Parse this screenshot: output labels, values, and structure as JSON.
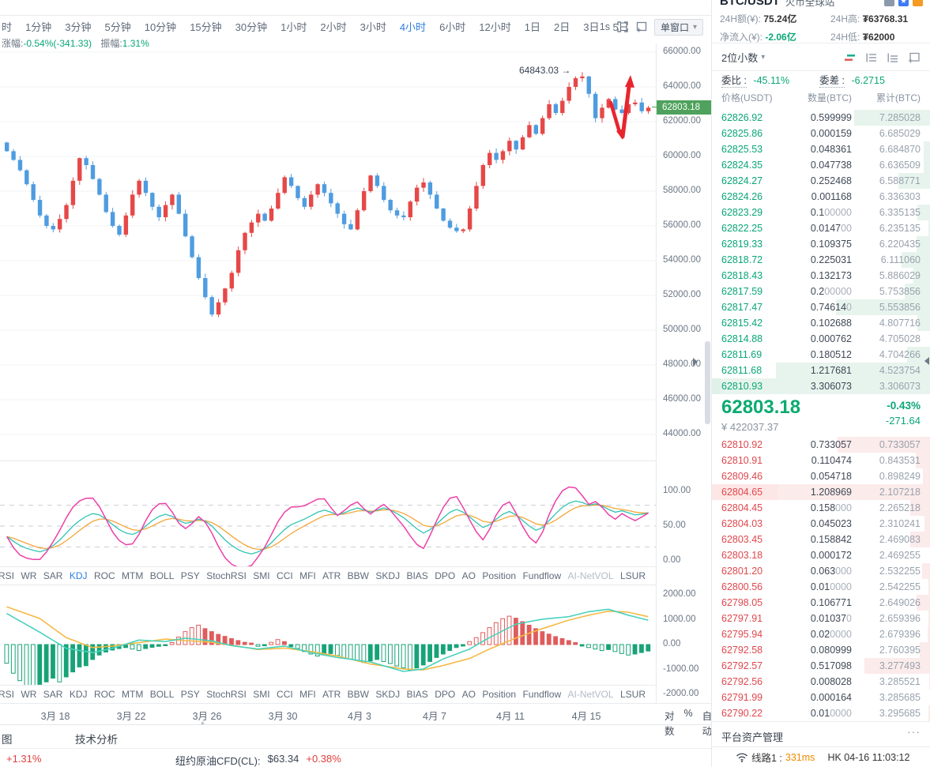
{
  "toolbar": {
    "timeframes": [
      "时",
      "1分钟",
      "3分钟",
      "5分钟",
      "10分钟",
      "15分钟",
      "30分钟",
      "1小时",
      "2小时",
      "3小时",
      "4小时",
      "6小时",
      "12小时",
      "1日",
      "2日",
      "3日",
      "5日"
    ],
    "active": "4小时",
    "interval_label": "1s",
    "window_mode": "单窗口"
  },
  "stats_line": {
    "change_label": "涨幅:",
    "change_value": "-0.54%(-341.33)",
    "amplitude_label": "振幅:",
    "amplitude_value": "1.31%"
  },
  "chart": {
    "annotation": "64843.03 →",
    "y_axis_labels": [
      "66000.00",
      "64000.00",
      "62000.00",
      "60000.00",
      "58000.00",
      "56000.00",
      "54000.00",
      "52000.00",
      "50000.00",
      "48000.00",
      "46000.00",
      "44000.00"
    ],
    "price_tag": "62803.18",
    "date_labels": [
      "3月 18",
      "3月 22",
      "3月 26",
      "3月 30",
      "4月 3",
      "4月 7",
      "4月 11",
      "4月 15"
    ],
    "axis_buttons": [
      "对数",
      "%",
      "自动"
    ],
    "colors": {
      "up": "#e64848",
      "down": "#4f9ce0",
      "grid": "#f1f3f6",
      "arrow": "#e8252e"
    },
    "closes": [
      60300,
      59800,
      59200,
      58400,
      57500,
      56600,
      56000,
      55800,
      56400,
      57200,
      58600,
      59900,
      59500,
      58700,
      57800,
      56800,
      56000,
      55500,
      56600,
      57800,
      58600,
      57900,
      57100,
      56500,
      57200,
      57800,
      56700,
      55400,
      54200,
      53000,
      51900,
      50900,
      51600,
      52400,
      53300,
      54600,
      55600,
      56200,
      56700,
      56300,
      57000,
      57900,
      58800,
      58300,
      57600,
      57100,
      57800,
      58400,
      57900,
      57300,
      56700,
      56100,
      55800,
      56900,
      58000,
      58900,
      58300,
      57500,
      56900,
      56600,
      56500,
      57400,
      58200,
      58500,
      57800,
      57000,
      56300,
      55900,
      55700,
      55800,
      57000,
      58300,
      59500,
      60200,
      59800,
      60300,
      60900,
      60400,
      61100,
      61800,
      61300,
      62200,
      63000,
      62500,
      63200,
      64000,
      64500,
      64600,
      63600,
      62200,
      62800,
      63300,
      62700,
      62500,
      63000,
      63100,
      62600,
      62803
    ],
    "kdj": {
      "labels": [
        "100.00",
        "50.00",
        "0.00"
      ],
      "colors": {
        "k": "#2fc4b2",
        "d": "#f5a63b",
        "j": "#ee3fa8",
        "dash": "#c8cdd4"
      },
      "k": [
        35,
        28,
        22,
        18,
        15,
        13,
        16,
        22,
        30,
        40,
        50,
        58,
        64,
        68,
        66,
        60,
        52,
        45,
        40,
        38,
        42,
        50,
        58,
        64,
        67,
        64,
        58,
        54,
        56,
        60,
        57,
        50,
        40,
        30,
        22,
        16,
        12,
        10,
        13,
        18,
        26,
        36,
        45,
        52,
        56,
        60,
        65,
        70,
        73,
        70,
        66,
        69,
        73,
        76,
        73,
        70,
        73,
        76,
        73,
        68,
        62,
        54,
        46,
        40,
        45,
        53,
        62,
        70,
        74,
        70,
        63,
        55,
        48,
        52,
        60,
        67,
        71,
        66,
        58,
        50,
        44,
        48,
        58,
        68,
        77,
        83,
        86,
        84,
        80,
        82,
        79,
        74,
        70,
        72,
        69,
        66,
        67,
        69
      ]
    },
    "netvol": {
      "labels": [
        "2000.00",
        "1000.00",
        "0.00",
        "-1000.00",
        "-2000.00"
      ],
      "colors": {
        "pos": "#e05c5c",
        "neg": "#17a377",
        "line1": "#49d2bd",
        "line2": "#f5b945"
      },
      "bars": [
        -750,
        -1150,
        -1450,
        -1650,
        -1700,
        -1600,
        -1500,
        -1350,
        -1500,
        -1300,
        -1100,
        -900,
        -850,
        -600,
        -420,
        -300,
        -220,
        -160,
        -120,
        -180,
        -240,
        -160,
        -110,
        -70,
        -40,
        80,
        300,
        520,
        680,
        780,
        640,
        520,
        410,
        330,
        240,
        160,
        90,
        60,
        -70,
        -50,
        90,
        200,
        120,
        -80,
        -160,
        -280,
        -380,
        -460,
        -420,
        -360,
        -440,
        -520,
        -580,
        -640,
        -720,
        -660,
        -600,
        -680,
        -760,
        -860,
        -940,
        -1020,
        -940,
        -820,
        -680,
        -520,
        -380,
        -240,
        -120,
        -60,
        120,
        280,
        480,
        680,
        880,
        1040,
        1140,
        1060,
        920,
        780,
        640,
        520,
        420,
        320,
        240,
        160,
        80,
        -60,
        -120,
        -180,
        -240,
        -200,
        -280,
        -360,
        -420,
        -380,
        -320,
        -260
      ],
      "line1": [
        [
          0,
          1250
        ],
        [
          5,
          500
        ],
        [
          9,
          -150
        ],
        [
          13,
          -320
        ],
        [
          16,
          -150
        ],
        [
          20,
          180
        ],
        [
          24,
          120
        ],
        [
          27,
          260
        ],
        [
          31,
          150
        ],
        [
          34,
          -40
        ],
        [
          38,
          -180
        ],
        [
          42,
          -60
        ],
        [
          46,
          -320
        ],
        [
          50,
          -520
        ],
        [
          55,
          -700
        ],
        [
          60,
          -1080
        ],
        [
          63,
          -980
        ],
        [
          66,
          -580
        ],
        [
          70,
          -180
        ],
        [
          73,
          280
        ],
        [
          77,
          820
        ],
        [
          81,
          1020
        ],
        [
          85,
          1120
        ],
        [
          88,
          1320
        ],
        [
          91,
          1420
        ],
        [
          94,
          1180
        ],
        [
          97,
          980
        ]
      ],
      "line2": [
        [
          0,
          1520
        ],
        [
          5,
          1050
        ],
        [
          9,
          280
        ],
        [
          13,
          -120
        ],
        [
          16,
          -60
        ],
        [
          20,
          80
        ],
        [
          24,
          220
        ],
        [
          27,
          160
        ],
        [
          31,
          90
        ],
        [
          34,
          -30
        ],
        [
          38,
          -200
        ],
        [
          42,
          -140
        ],
        [
          46,
          -280
        ],
        [
          50,
          -460
        ],
        [
          55,
          -780
        ],
        [
          60,
          -980
        ],
        [
          63,
          -1020
        ],
        [
          66,
          -840
        ],
        [
          70,
          -560
        ],
        [
          73,
          -180
        ],
        [
          77,
          260
        ],
        [
          81,
          640
        ],
        [
          85,
          980
        ],
        [
          88,
          1180
        ],
        [
          91,
          1340
        ],
        [
          94,
          1300
        ],
        [
          97,
          1120
        ]
      ]
    }
  },
  "indicator_tabs": {
    "items": [
      "RSI",
      "WR",
      "SAR",
      "KDJ",
      "ROC",
      "MTM",
      "BOLL",
      "PSY",
      "StochRSI",
      "SMI",
      "CCI",
      "MFI",
      "ATR",
      "BBW",
      "SKDJ",
      "BIAS",
      "DPO",
      "AO",
      "Position",
      "Fundflow",
      "AI-NetVOL",
      "LSUR"
    ],
    "active": "KDJ",
    "muted": "AI-NetVOL"
  },
  "bottom_bar": {
    "kline_tab": "图",
    "analysis_tab": "技术分析"
  },
  "ticker": {
    "change1": "+1.31%",
    "instrument": "纽约原油CFD(CL):",
    "price": "$63.34",
    "change2": "+0.38%"
  },
  "orderbook": {
    "pair": "BTC/USDT",
    "exchange": "火币全球站",
    "stats": [
      {
        "label": "24H额(¥):",
        "value": "75.24亿",
        "cls": ""
      },
      {
        "label": "24H高:",
        "value": "₮63768.31",
        "cls": ""
      },
      {
        "label": "净流入(¥):",
        "value": "-2.06亿",
        "cls": "green"
      },
      {
        "label": "24H低:",
        "value": "₮62000",
        "cls": ""
      }
    ],
    "decimals": "2位小数",
    "ratio": {
      "weibi_label": "委比 :",
      "weibi": "-45.11%",
      "weicha_label": "委差 :",
      "weicha": "-6.2715"
    },
    "header": [
      "价格(USDT)",
      "数量(BTC)",
      "累计(BTC)"
    ],
    "asks": [
      [
        "62826.92",
        "0.599999",
        "7.285028"
      ],
      [
        "62825.86",
        "0.000159",
        "6.685029"
      ],
      [
        "62825.53",
        "0.048361",
        "6.684870"
      ],
      [
        "62824.35",
        "0.047738",
        "6.636509"
      ],
      [
        "62824.27",
        "0.252468",
        "6.588771"
      ],
      [
        "62824.26",
        "0.001168",
        "6.336303"
      ],
      [
        "62823.29",
        "0.100000",
        "6.335135"
      ],
      [
        "62822.25",
        "0.014700",
        "6.235135"
      ],
      [
        "62819.33",
        "0.109375",
        "6.220435"
      ],
      [
        "62818.72",
        "0.225031",
        "6.111060"
      ],
      [
        "62818.43",
        "0.132173",
        "5.886029"
      ],
      [
        "62817.59",
        "0.200000",
        "5.753856"
      ],
      [
        "62817.47",
        "0.746140",
        "5.553856"
      ],
      [
        "62815.42",
        "0.102688",
        "4.807716"
      ],
      [
        "62814.88",
        "0.000762",
        "4.705028"
      ],
      [
        "62811.69",
        "0.180512",
        "4.704266"
      ],
      [
        "62811.68",
        "1.217681",
        "4.523754"
      ],
      [
        "62810.93",
        "3.306073",
        "3.306073"
      ]
    ],
    "bids": [
      [
        "62810.92",
        "0.733057",
        "0.733057"
      ],
      [
        "62810.91",
        "0.110474",
        "0.843531"
      ],
      [
        "62809.46",
        "0.054718",
        "0.898249"
      ],
      [
        "62804.65",
        "1.208969",
        "2.107218"
      ],
      [
        "62804.45",
        "0.158000",
        "2.265218"
      ],
      [
        "62804.03",
        "0.045023",
        "2.310241"
      ],
      [
        "62803.45",
        "0.158842",
        "2.469083"
      ],
      [
        "62803.18",
        "0.000172",
        "2.469255"
      ],
      [
        "62801.20",
        "0.063000",
        "2.532255"
      ],
      [
        "62800.56",
        "0.010000",
        "2.542255"
      ],
      [
        "62798.05",
        "0.106771",
        "2.649026"
      ],
      [
        "62797.91",
        "0.010370",
        "2.659396"
      ],
      [
        "62795.94",
        "0.020000",
        "2.679396"
      ],
      [
        "62792.58",
        "0.080999",
        "2.760395"
      ],
      [
        "62792.57",
        "0.517098",
        "3.277493"
      ],
      [
        "62792.56",
        "0.008028",
        "3.285521"
      ],
      [
        "62791.99",
        "0.000164",
        "3.285685"
      ],
      [
        "62790.22",
        "0.010000",
        "3.295685"
      ]
    ],
    "ask_flash_index": 17,
    "bid_flash_index": 3,
    "last": {
      "price": "62803.18",
      "cny": "¥ 422037.37",
      "pct": "-0.43%",
      "chg": "-271.64"
    },
    "assets_label": "平台资产管理"
  },
  "status": {
    "line_label": "线路1 :",
    "latency": "331ms",
    "clock": "HK 04-16 11:03:12"
  }
}
